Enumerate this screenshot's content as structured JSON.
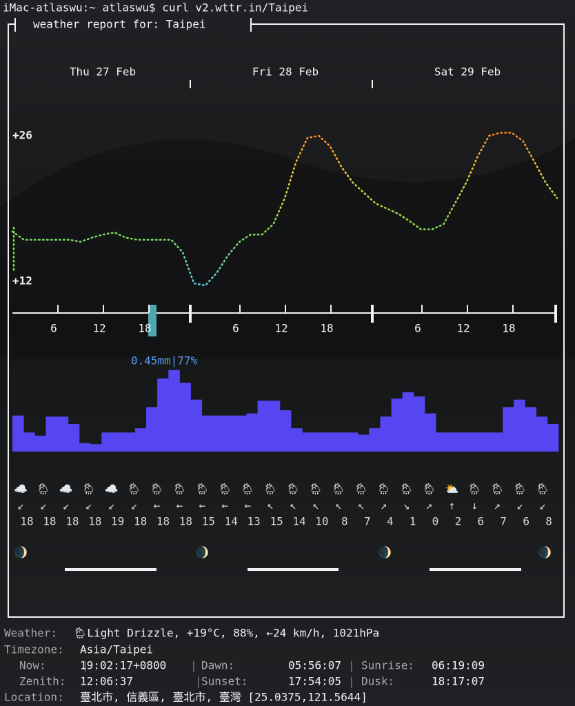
{
  "terminal": {
    "prompt": "iMac-atlaswu:~ atlaswu$ curl v2.wttr.in/Taipei"
  },
  "header": {
    "title": "weather report for: Taipei"
  },
  "days": [
    "Thu 27 Feb",
    "Fri 28 Feb",
    "Sat 29 Feb"
  ],
  "temperature": {
    "ylim": [
      12,
      26
    ],
    "yticks": [
      {
        "value": 26,
        "label": "+26"
      },
      {
        "value": 12,
        "label": "+12"
      }
    ],
    "values": [
      16.8,
      16,
      16,
      16,
      16,
      16,
      15.8,
      16.2,
      16.5,
      16.7,
      16.2,
      16,
      16,
      16,
      16,
      14.8,
      11.8,
      11.6,
      12.8,
      14.5,
      15.8,
      16.5,
      16.5,
      17.5,
      20,
      23.5,
      25.8,
      26,
      25,
      23,
      21.5,
      20.5,
      19.5,
      19,
      18.5,
      17.8,
      17,
      17,
      17.5,
      19.5,
      21.5,
      24,
      26,
      26.3,
      26.3,
      25.5,
      23.5,
      21.5,
      20
    ]
  },
  "hour_ticks": [
    6,
    12,
    18,
    6,
    12,
    18,
    6,
    12,
    18
  ],
  "precipitation": {
    "label": "0.45mm|77%",
    "ylim": [
      0,
      80
    ],
    "values": [
      34,
      18,
      15,
      33,
      33,
      26,
      8,
      7,
      18,
      18,
      18,
      22,
      42,
      69,
      77,
      65,
      49,
      34,
      34,
      34,
      34,
      36,
      48,
      48,
      39,
      22,
      18,
      18,
      18,
      18,
      18,
      16,
      22,
      33,
      50,
      56,
      52,
      36,
      18,
      18,
      18,
      18,
      18,
      18,
      42,
      49,
      42,
      33,
      26
    ]
  },
  "icons": [
    "☁️",
    "🌦",
    "☁️",
    "🌦",
    "☁️",
    "🌦",
    "🌦",
    "🌦",
    "🌦",
    "🌦",
    "🌦",
    "🌦",
    "🌦",
    "🌦",
    "🌦",
    "🌦",
    "🌦",
    "🌦",
    "🌦",
    "⛅",
    "🌦",
    "🌦",
    "🌦",
    "🌦"
  ],
  "wind_directions": [
    "↙",
    "↙",
    "↙",
    "↙",
    "↙",
    "↙",
    "←",
    "←",
    "←",
    "←",
    "←",
    "↖",
    "↖",
    "↖",
    "↖",
    "↖",
    "↗",
    "↘",
    "↗",
    "↑",
    "↓",
    "↗",
    "↙",
    "↙"
  ],
  "wind_speeds": [
    18,
    18,
    18,
    18,
    19,
    18,
    18,
    18,
    15,
    14,
    13,
    15,
    14,
    10,
    8,
    7,
    4,
    1,
    0,
    2,
    6,
    7,
    6,
    8
  ],
  "moon_phases": [
    "🌒",
    "🌒",
    "🌒",
    "🌒"
  ],
  "info": {
    "weather_label": "Weather:",
    "weather": "🌦Light Drizzle, +19°C, 88%, ←24 km/h, 1021hPa",
    "timezone_label": "Timezone:",
    "timezone": "Asia/Taipei",
    "now_label": "Now:",
    "now": "19:02:17+0800",
    "dawn_label": "Dawn:",
    "dawn": "05:56:07",
    "sunrise_label": "Sunrise:",
    "sunrise": "06:19:09",
    "zenith_label": "Zenith:",
    "zenith": "12:06:37",
    "sunset_label": "Sunset:",
    "sunset": "17:54:05",
    "dusk_label": "Dusk:",
    "dusk": "18:17:07",
    "location_label": "Location:",
    "location": "臺北市, 信義區, 臺北市, 臺灣 [25.0375,121.5644]"
  }
}
